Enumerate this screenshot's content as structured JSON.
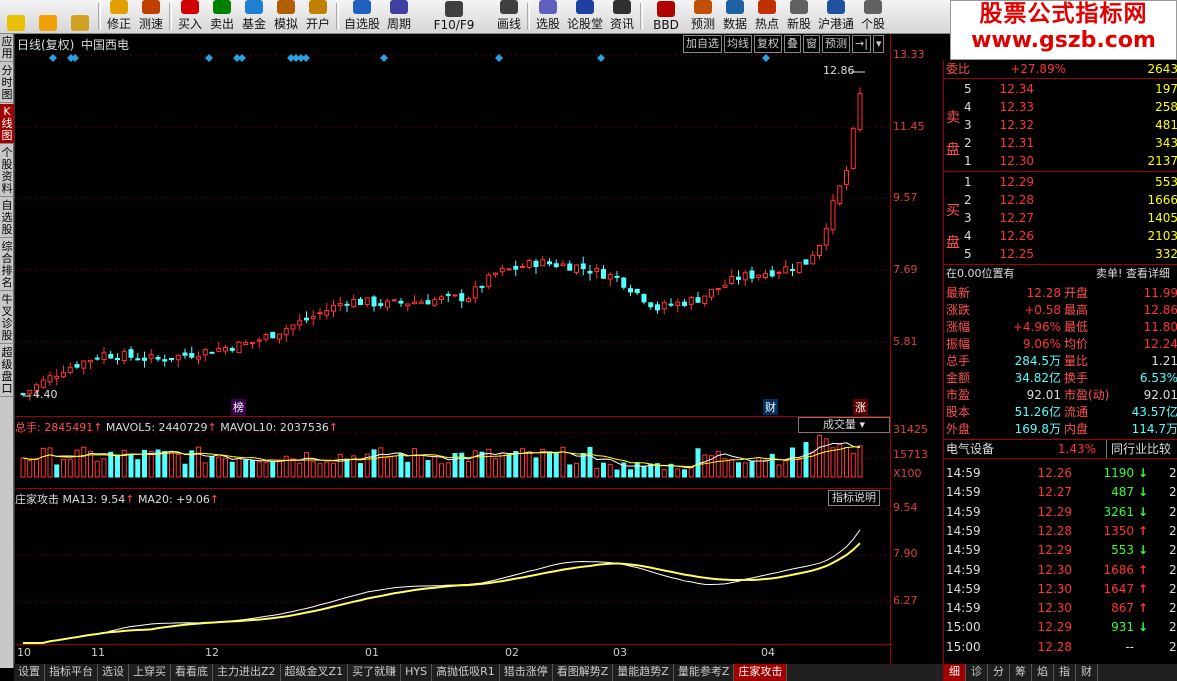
{
  "toolbar": {
    "items": [
      {
        "label": "",
        "icon": "home-icon"
      },
      {
        "label": "",
        "icon": "back-arrow-icon"
      },
      {
        "label": "",
        "icon": "down-arrow-icon"
      },
      {
        "label": "修正",
        "icon": "coin-icon"
      },
      {
        "label": "测速",
        "icon": "clock-icon"
      },
      {
        "label": "买入",
        "icon": "buy-icon"
      },
      {
        "label": "卖出",
        "icon": "sell-icon"
      },
      {
        "label": "基金",
        "icon": "fund-icon"
      },
      {
        "label": "模拟",
        "icon": "hammer-icon"
      },
      {
        "label": "开户",
        "icon": "briefcase-icon"
      },
      {
        "label": "自选股",
        "icon": "star-icon"
      },
      {
        "label": "周期",
        "icon": "cycle-icon"
      },
      {
        "label": "F10/F9",
        "icon": "f10-icon"
      },
      {
        "label": "画线",
        "icon": "draw-icon"
      },
      {
        "label": "选股",
        "icon": "select-icon"
      },
      {
        "label": "论股堂",
        "icon": "forum-icon"
      },
      {
        "label": "资讯",
        "icon": "news-icon"
      },
      {
        "label": "BBD",
        "icon": "bbd-icon"
      },
      {
        "label": "预测",
        "icon": "forecast-icon"
      },
      {
        "label": "数据",
        "icon": "pe-icon"
      },
      {
        "label": "热点",
        "icon": "hot-icon"
      },
      {
        "label": "新股",
        "icon": "newstock-icon"
      },
      {
        "label": "沪港通",
        "icon": "hkex-icon"
      },
      {
        "label": "个股",
        "icon": "stock-icon"
      }
    ]
  },
  "banner": {
    "line1": "股票公式指标网",
    "line2": "www.gszb.com"
  },
  "left_tabs": [
    "应用",
    "分时图",
    "K线图",
    "个股资料",
    "自选股",
    "综合排名",
    "牛叉诊股",
    "超级盘口"
  ],
  "chart_header": {
    "period": "日线(复权)",
    "stock": "中国西电",
    "buttons": [
      "加自选",
      "均线",
      "复权",
      "叠",
      "窗",
      "预测"
    ]
  },
  "axis_right": {
    "kline": [
      "13.33",
      "11.45",
      "9.57",
      "7.69",
      "5.81"
    ],
    "vol": [
      "31425",
      "15713",
      "X100"
    ],
    "ind": [
      "9.54",
      "7.90",
      "6.27"
    ]
  },
  "annotations": {
    "high_label": "12.86",
    "low_label": "4.40",
    "mark1": "榜",
    "mark2": "财",
    "mark3": "涨"
  },
  "vol_header": {
    "total_label": "总手: 2845491",
    "mavol5": "MAVOL5: 2440729",
    "mavol10": "MAVOL10: 2037536",
    "selector": "成交量"
  },
  "ind_header": {
    "name": "庄家攻击",
    "ma13": "MA13: 9.54",
    "ma20": "MA20: +9.06",
    "help": "指标说明"
  },
  "xaxis": [
    "10",
    "11",
    "12",
    "01",
    "02",
    "03",
    "04"
  ],
  "bottom_tabs": [
    "设置",
    "指标平台",
    "选设",
    "上穿买",
    "看看底",
    "主力进出Z2",
    "超级金叉Z1",
    "买了就赚",
    "HYS",
    "高抛低吸R1",
    "猎击涨停",
    "看图解势Z",
    "量能趋势Z",
    "量能参考Z",
    "庄家攻击"
  ],
  "order_book": {
    "ratio_label": "委比",
    "ratio_value": "+27.89%",
    "ratio_diff": "2643",
    "sell_label": "卖盘",
    "buy_label": "买盘",
    "sell": [
      {
        "lvl": "5",
        "price": "12.34",
        "vol": "197"
      },
      {
        "lvl": "4",
        "price": "12.33",
        "vol": "258"
      },
      {
        "lvl": "3",
        "price": "12.32",
        "vol": "481"
      },
      {
        "lvl": "2",
        "price": "12.31",
        "vol": "343"
      },
      {
        "lvl": "1",
        "price": "12.30",
        "vol": "2137"
      }
    ],
    "buy": [
      {
        "lvl": "1",
        "price": "12.29",
        "vol": "553"
      },
      {
        "lvl": "2",
        "price": "12.28",
        "vol": "1666"
      },
      {
        "lvl": "3",
        "price": "12.27",
        "vol": "1405"
      },
      {
        "lvl": "4",
        "price": "12.26",
        "vol": "2103"
      },
      {
        "lvl": "5",
        "price": "12.25",
        "vol": "332"
      }
    ]
  },
  "position": {
    "left": "在0.00位置有",
    "right": "卖单! 查看详细"
  },
  "quote": [
    {
      "l1": "最新",
      "v1": "12.28",
      "l2": "开盘",
      "v2": "11.99"
    },
    {
      "l1": "涨跌",
      "v1": "+0.58",
      "l2": "最高",
      "v2": "12.86"
    },
    {
      "l1": "涨幅",
      "v1": "+4.96%",
      "l2": "最低",
      "v2": "11.80"
    },
    {
      "l1": "振幅",
      "v1": "9.06%",
      "l2": "均价",
      "v2": "12.24"
    },
    {
      "l1": "总手",
      "v1": "284.5万",
      "l2": "量比",
      "v2": "1.21"
    },
    {
      "l1": "金额",
      "v1": "34.82亿",
      "l2": "换手",
      "v2": "6.53%"
    },
    {
      "l1": "市盈",
      "v1": "92.01",
      "l2": "市盈(动)",
      "v2": "92.01"
    },
    {
      "l1": "股本",
      "v1": "51.26亿",
      "l2": "流通",
      "v2": "43.57亿"
    },
    {
      "l1": "外盘",
      "v1": "169.8万",
      "l2": "内盘",
      "v2": "114.7万"
    }
  ],
  "industry": {
    "name": "电气设备",
    "pct": "1.43%",
    "compare": "同行业比较"
  },
  "ticks": [
    {
      "t": "14:59",
      "p": "12.26",
      "v": "1190",
      "d": "down"
    },
    {
      "t": "14:59",
      "p": "12.27",
      "v": "487",
      "d": "down"
    },
    {
      "t": "14:59",
      "p": "12.29",
      "v": "3261",
      "d": "down"
    },
    {
      "t": "14:59",
      "p": "12.28",
      "v": "1350",
      "d": "up"
    },
    {
      "t": "14:59",
      "p": "12.29",
      "v": "553",
      "d": "down"
    },
    {
      "t": "14:59",
      "p": "12.30",
      "v": "1686",
      "d": "up"
    },
    {
      "t": "14:59",
      "p": "12.30",
      "v": "1647",
      "d": "up"
    },
    {
      "t": "14:59",
      "p": "12.30",
      "v": "867",
      "d": "up"
    },
    {
      "t": "15:00",
      "p": "12.29",
      "v": "931",
      "d": "down"
    },
    {
      "t": "15:00",
      "p": "12.28",
      "v": "--",
      "d": "none"
    }
  ],
  "right_tabs": [
    "细",
    "诊",
    "分",
    "筹",
    "焰",
    "指",
    "财"
  ],
  "colors": {
    "up": "#ff3333",
    "down": "#54ffff",
    "label": "#ff5050",
    "value": "#ffff00",
    "accent": "#a00000"
  }
}
